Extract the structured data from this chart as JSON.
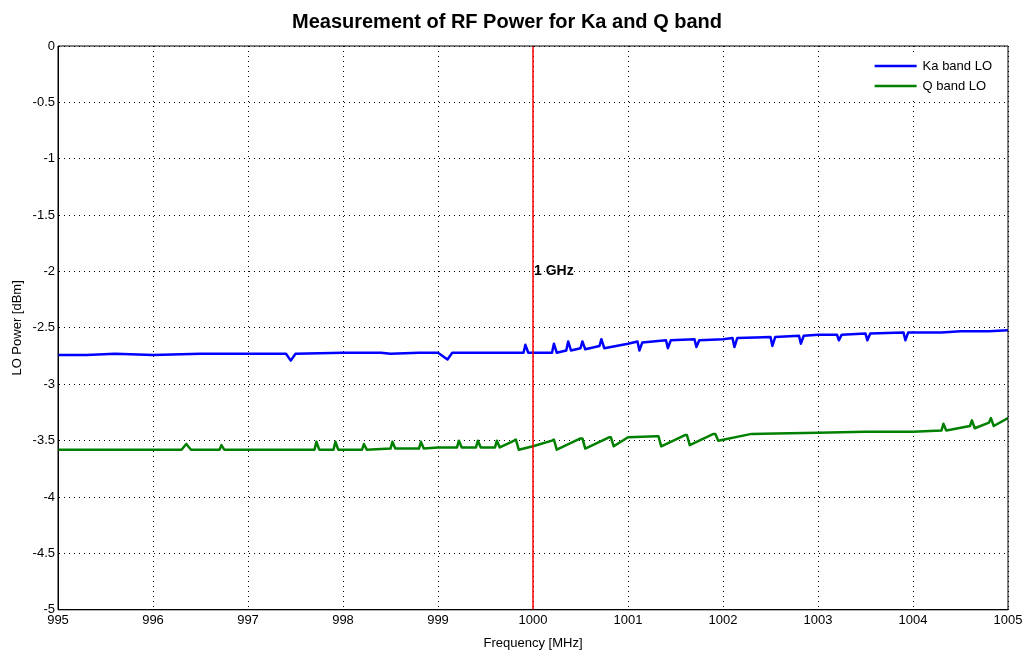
{
  "chart_data": {
    "type": "line",
    "title": "Measurement of RF Power for Ka and Q band",
    "xlabel": "Frequency [MHz]",
    "ylabel": "LO Power [dBm]",
    "xlim": [
      995,
      1005
    ],
    "xticks": [
      995,
      996,
      997,
      998,
      999,
      1000,
      1001,
      1002,
      1003,
      1004,
      1005
    ],
    "ylim": [
      -5,
      0
    ],
    "yticks": [
      -5,
      -4.5,
      -4,
      -3.5,
      -3,
      -2.5,
      -2,
      -1.5,
      -1,
      -0.5,
      0
    ],
    "grid": true,
    "line_style": "solid",
    "marker": "none",
    "legend": "top right",
    "ref_lines": [
      {
        "axis": "x",
        "value": 1000,
        "label": "1 GHz",
        "color": "#ff0000"
      }
    ],
    "series": [
      {
        "name": "Ka band LO",
        "color": "#0000ff",
        "x": [
          995,
          995.3,
          995.6,
          996,
          996.5,
          997,
          997.4,
          997.45,
          997.5,
          998,
          998.4,
          998.5,
          998.8,
          999,
          999.1,
          999.15,
          999.5,
          999.9,
          999.92,
          999.95,
          1000,
          1000.2,
          1000.22,
          1000.25,
          1000.35,
          1000.37,
          1000.4,
          1000.5,
          1000.52,
          1000.55,
          1000.7,
          1000.72,
          1000.75,
          1001,
          1001.1,
          1001.12,
          1001.15,
          1001.4,
          1001.42,
          1001.45,
          1001.7,
          1001.72,
          1001.75,
          1002,
          1002.1,
          1002.12,
          1002.15,
          1002.5,
          1002.52,
          1002.55,
          1002.8,
          1002.82,
          1002.85,
          1003,
          1003.2,
          1003.22,
          1003.25,
          1003.5,
          1003.52,
          1003.55,
          1003.9,
          1003.92,
          1003.95,
          1004.3,
          1004.5,
          1004.8,
          1005
        ],
        "values": [
          -2.74,
          -2.74,
          -2.73,
          -2.74,
          -2.73,
          -2.73,
          -2.73,
          -2.79,
          -2.73,
          -2.72,
          -2.72,
          -2.73,
          -2.72,
          -2.72,
          -2.78,
          -2.72,
          -2.72,
          -2.72,
          -2.65,
          -2.72,
          -2.72,
          -2.72,
          -2.64,
          -2.72,
          -2.7,
          -2.62,
          -2.7,
          -2.68,
          -2.62,
          -2.69,
          -2.66,
          -2.6,
          -2.68,
          -2.64,
          -2.62,
          -2.7,
          -2.63,
          -2.61,
          -2.68,
          -2.61,
          -2.6,
          -2.67,
          -2.61,
          -2.6,
          -2.59,
          -2.67,
          -2.59,
          -2.58,
          -2.66,
          -2.58,
          -2.57,
          -2.64,
          -2.57,
          -2.56,
          -2.56,
          -2.61,
          -2.56,
          -2.55,
          -2.61,
          -2.55,
          -2.54,
          -2.61,
          -2.54,
          -2.54,
          -2.53,
          -2.53,
          -2.52
        ]
      },
      {
        "name": "Q band LO",
        "color": "#008000",
        "x": [
          995,
          995.5,
          996,
          996.3,
          996.35,
          996.4,
          996.7,
          996.72,
          996.75,
          997,
          997.6,
          997.7,
          997.72,
          997.75,
          997.9,
          997.92,
          997.95,
          998.2,
          998.22,
          998.25,
          998.5,
          998.52,
          998.55,
          998.8,
          998.82,
          998.85,
          999,
          999.2,
          999.22,
          999.25,
          999.4,
          999.42,
          999.45,
          999.6,
          999.62,
          999.65,
          999.8,
          999.82,
          999.85,
          1000,
          1000.2,
          1000.22,
          1000.25,
          1000.5,
          1000.52,
          1000.55,
          1000.8,
          1000.82,
          1000.85,
          1001,
          1001.3,
          1001.32,
          1001.35,
          1001.6,
          1001.62,
          1001.65,
          1001.9,
          1001.92,
          1001.95,
          1002.3,
          1003,
          1003.5,
          1004,
          1004.3,
          1004.32,
          1004.35,
          1004.6,
          1004.62,
          1004.65,
          1004.8,
          1004.82,
          1004.85,
          1005
        ],
        "values": [
          -3.58,
          -3.58,
          -3.58,
          -3.58,
          -3.53,
          -3.58,
          -3.58,
          -3.54,
          -3.58,
          -3.58,
          -3.58,
          -3.58,
          -3.51,
          -3.58,
          -3.58,
          -3.51,
          -3.58,
          -3.58,
          -3.53,
          -3.58,
          -3.57,
          -3.51,
          -3.57,
          -3.57,
          -3.51,
          -3.57,
          -3.56,
          -3.56,
          -3.5,
          -3.56,
          -3.56,
          -3.5,
          -3.56,
          -3.56,
          -3.5,
          -3.56,
          -3.5,
          -3.49,
          -3.58,
          -3.55,
          -3.5,
          -3.49,
          -3.58,
          -3.48,
          -3.48,
          -3.57,
          -3.47,
          -3.47,
          -3.55,
          -3.47,
          -3.46,
          -3.46,
          -3.55,
          -3.45,
          -3.45,
          -3.54,
          -3.44,
          -3.44,
          -3.5,
          -3.44,
          -3.43,
          -3.42,
          -3.42,
          -3.41,
          -3.35,
          -3.41,
          -3.37,
          -3.32,
          -3.39,
          -3.34,
          -3.3,
          -3.37,
          -3.3
        ]
      }
    ]
  }
}
